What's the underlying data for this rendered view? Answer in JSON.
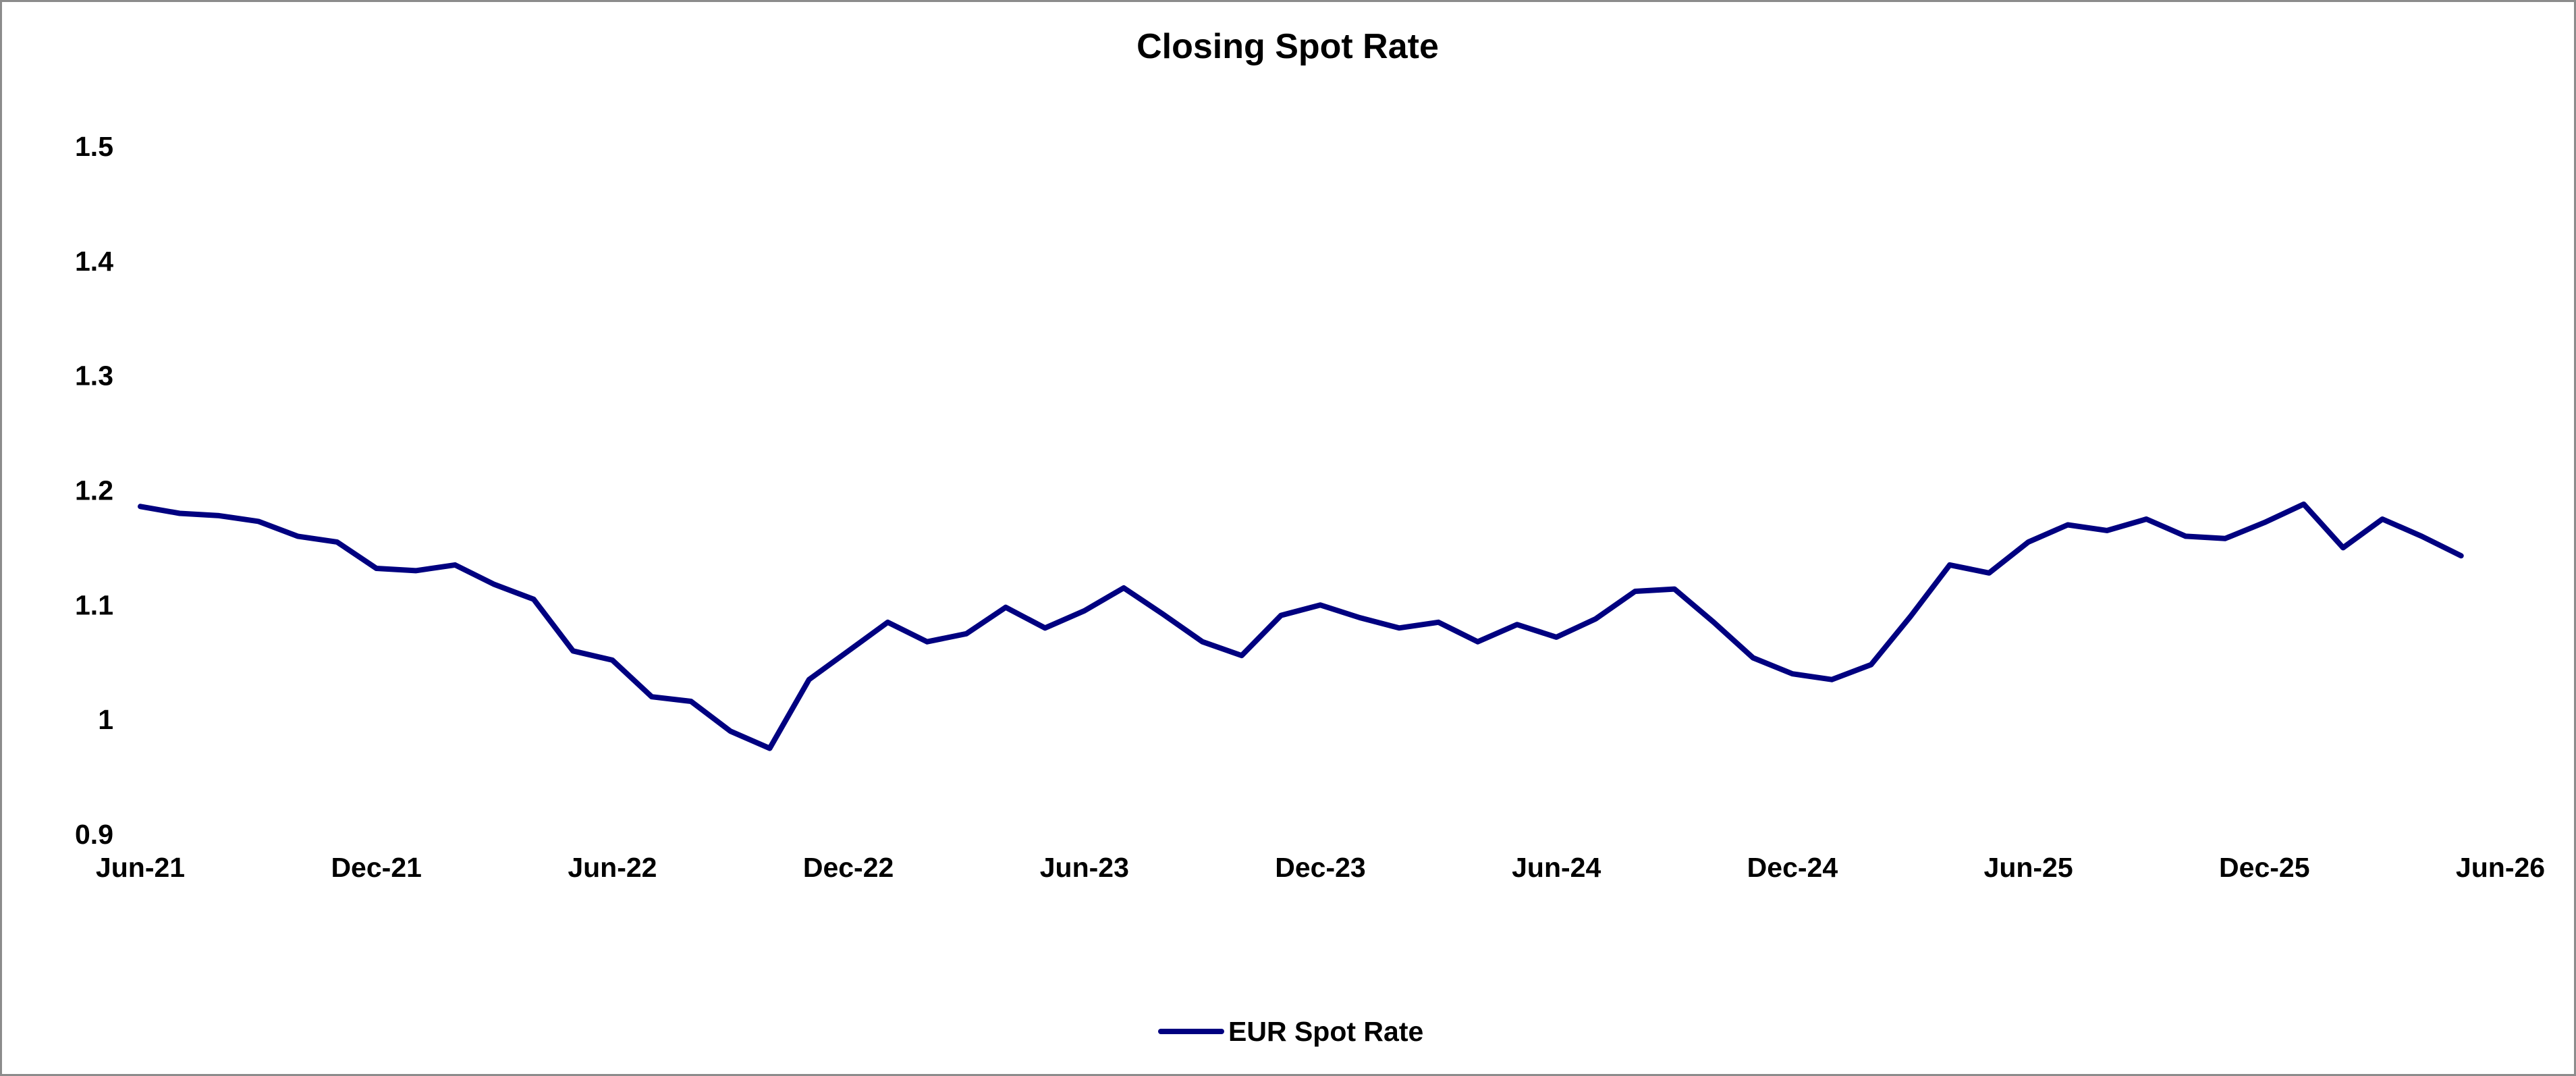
{
  "chart_data": {
    "type": "line",
    "title": "Closing Spot Rate",
    "xlabel": "",
    "ylabel": "",
    "x_ticks": [
      "Jun-21",
      "Dec-21",
      "Jun-22",
      "Dec-22",
      "Jun-23",
      "Dec-23",
      "Jun-24",
      "Dec-24",
      "Jun-25",
      "Dec-25",
      "Jun-26"
    ],
    "y_ticks": [
      "0.9",
      "1",
      "1.1",
      "1.2",
      "1.3",
      "1.4",
      "1.5"
    ],
    "ylim": [
      0.9,
      1.5
    ],
    "xlim": [
      "2021-06",
      "2026-06"
    ],
    "grid": false,
    "legend_position": "bottom",
    "series": [
      {
        "name": "EUR Spot Rate",
        "color": "#000080",
        "points": [
          [
            "2021-06",
            1.186
          ],
          [
            "2021-07",
            1.18
          ],
          [
            "2021-08",
            1.178
          ],
          [
            "2021-09",
            1.173
          ],
          [
            "2021-10",
            1.16
          ],
          [
            "2021-11",
            1.155
          ],
          [
            "2021-12",
            1.132
          ],
          [
            "2022-01",
            1.13
          ],
          [
            "2022-02",
            1.135
          ],
          [
            "2022-03",
            1.118
          ],
          [
            "2022-04",
            1.105
          ],
          [
            "2022-05",
            1.06
          ],
          [
            "2022-06",
            1.052
          ],
          [
            "2022-07",
            1.02
          ],
          [
            "2022-08",
            1.016
          ],
          [
            "2022-09",
            0.99
          ],
          [
            "2022-10",
            0.975
          ],
          [
            "2022-11",
            1.035
          ],
          [
            "2022-12",
            1.06
          ],
          [
            "2023-01",
            1.085
          ],
          [
            "2023-02",
            1.068
          ],
          [
            "2023-03",
            1.075
          ],
          [
            "2023-04",
            1.098
          ],
          [
            "2023-05",
            1.08
          ],
          [
            "2023-06",
            1.095
          ],
          [
            "2023-07",
            1.115
          ],
          [
            "2023-08",
            1.092
          ],
          [
            "2023-09",
            1.068
          ],
          [
            "2023-10",
            1.056
          ],
          [
            "2023-11",
            1.091
          ],
          [
            "2023-12",
            1.1
          ],
          [
            "2024-01",
            1.089
          ],
          [
            "2024-02",
            1.08
          ],
          [
            "2024-03",
            1.085
          ],
          [
            "2024-04",
            1.068
          ],
          [
            "2024-05",
            1.083
          ],
          [
            "2024-06",
            1.072
          ],
          [
            "2024-07",
            1.088
          ],
          [
            "2024-08",
            1.112
          ],
          [
            "2024-09",
            1.114
          ],
          [
            "2024-10",
            1.085
          ],
          [
            "2024-11",
            1.054
          ],
          [
            "2024-12",
            1.04
          ],
          [
            "2025-01",
            1.035
          ],
          [
            "2025-02",
            1.048
          ],
          [
            "2025-03",
            1.09
          ],
          [
            "2025-04",
            1.135
          ],
          [
            "2025-05",
            1.128
          ],
          [
            "2025-06",
            1.155
          ],
          [
            "2025-07",
            1.17
          ],
          [
            "2025-08",
            1.165
          ],
          [
            "2025-09",
            1.175
          ],
          [
            "2025-10",
            1.16
          ],
          [
            "2025-11",
            1.158
          ],
          [
            "2025-12",
            1.172
          ],
          [
            "2026-01",
            1.188
          ],
          [
            "2026-02",
            1.15
          ],
          [
            "2026-03",
            1.175
          ],
          [
            "2026-04",
            1.16
          ],
          [
            "2026-05",
            1.143
          ]
        ]
      }
    ]
  }
}
